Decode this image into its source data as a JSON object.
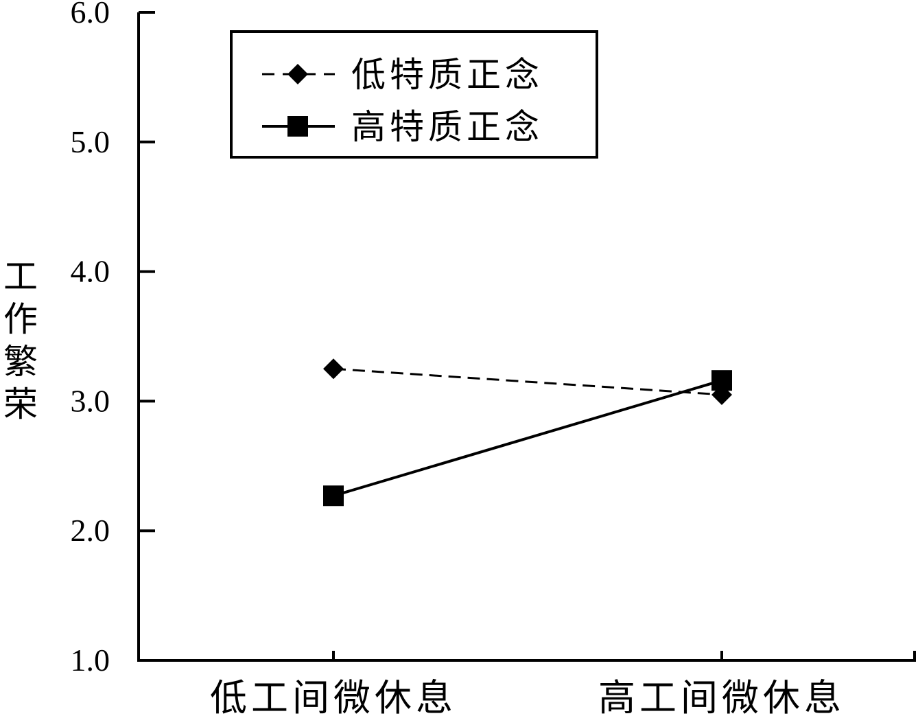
{
  "chart_data": {
    "type": "line",
    "categories": [
      "低工间微休息",
      "高工间微休息"
    ],
    "series": [
      {
        "name": "低特质正念",
        "values": [
          3.25,
          3.05
        ],
        "line_style": "dashed",
        "marker": "diamond",
        "color": "#000000"
      },
      {
        "name": "高特质正念",
        "values": [
          2.27,
          3.16
        ],
        "line_style": "solid",
        "marker": "square",
        "color": "#000000"
      }
    ],
    "title": "",
    "xlabel": "",
    "ylabel": "工作繁荣",
    "ylim": [
      1.0,
      6.0
    ],
    "yticks": [
      "1.0",
      "2.0",
      "3.0",
      "4.0",
      "5.0",
      "6.0"
    ],
    "grid": false,
    "legend_position": "top-left"
  }
}
